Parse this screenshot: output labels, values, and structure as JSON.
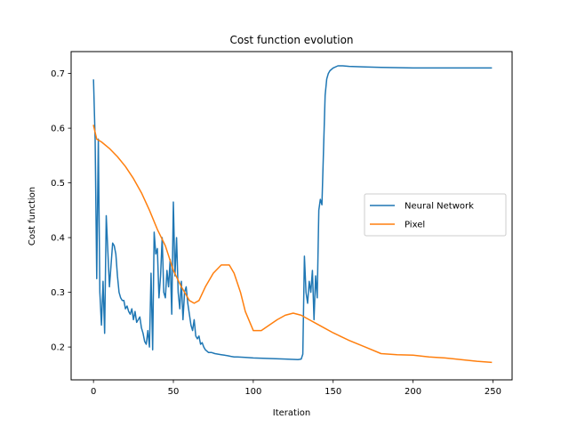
{
  "chart_data": {
    "type": "line",
    "title": "Cost function evolution",
    "xlabel": "Iteration",
    "ylabel": "Cost function",
    "xlim": [
      -14,
      262
    ],
    "ylim": [
      0.14,
      0.74
    ],
    "xticks": [
      0,
      50,
      100,
      150,
      200,
      250
    ],
    "yticks": [
      0.2,
      0.3,
      0.4,
      0.5,
      0.6,
      0.7
    ],
    "ytick_labels": [
      "0.2",
      "0.3",
      "0.4",
      "0.5",
      "0.6",
      "0.7"
    ],
    "grid": false,
    "legend_position": "center-right",
    "series": [
      {
        "name": "Neural Network",
        "color": "#1f77b4",
        "x": [
          0,
          1,
          2,
          3,
          4,
          5,
          6,
          7,
          8,
          9,
          10,
          11,
          12,
          13,
          14,
          15,
          16,
          17,
          18,
          19,
          20,
          21,
          22,
          23,
          24,
          25,
          26,
          27,
          28,
          29,
          30,
          31,
          32,
          33,
          34,
          35,
          36,
          37,
          38,
          39,
          40,
          41,
          42,
          43,
          44,
          45,
          46,
          47,
          48,
          49,
          50,
          51,
          52,
          53,
          54,
          55,
          56,
          57,
          58,
          59,
          60,
          61,
          62,
          63,
          64,
          65,
          66,
          67,
          68,
          69,
          70,
          72,
          74,
          76,
          78,
          80,
          82,
          84,
          86,
          88,
          90,
          95,
          100,
          110,
          120,
          128,
          130,
          131,
          132,
          133,
          134,
          135,
          136,
          137,
          138,
          139,
          140,
          141,
          142,
          143,
          144,
          145,
          146,
          147,
          148,
          150,
          153,
          156,
          160,
          170,
          180,
          200,
          220,
          249
        ],
        "values": [
          0.688,
          0.58,
          0.325,
          0.58,
          0.3,
          0.24,
          0.32,
          0.225,
          0.44,
          0.375,
          0.31,
          0.35,
          0.39,
          0.385,
          0.37,
          0.33,
          0.3,
          0.29,
          0.285,
          0.285,
          0.27,
          0.275,
          0.265,
          0.26,
          0.27,
          0.25,
          0.265,
          0.245,
          0.25,
          0.255,
          0.235,
          0.225,
          0.21,
          0.205,
          0.23,
          0.2,
          0.335,
          0.195,
          0.41,
          0.37,
          0.38,
          0.29,
          0.33,
          0.4,
          0.3,
          0.29,
          0.34,
          0.31,
          0.36,
          0.26,
          0.465,
          0.33,
          0.4,
          0.3,
          0.27,
          0.32,
          0.25,
          0.3,
          0.31,
          0.28,
          0.26,
          0.24,
          0.23,
          0.25,
          0.22,
          0.215,
          0.22,
          0.205,
          0.208,
          0.2,
          0.195,
          0.19,
          0.19,
          0.188,
          0.187,
          0.186,
          0.185,
          0.184,
          0.183,
          0.182,
          0.182,
          0.181,
          0.18,
          0.179,
          0.178,
          0.177,
          0.178,
          0.187,
          0.366,
          0.3,
          0.28,
          0.32,
          0.3,
          0.34,
          0.25,
          0.33,
          0.29,
          0.45,
          0.47,
          0.46,
          0.56,
          0.66,
          0.69,
          0.7,
          0.705,
          0.71,
          0.714,
          0.714,
          0.713,
          0.712,
          0.711,
          0.71,
          0.71,
          0.71
        ]
      },
      {
        "name": "Pixel",
        "color": "#ff7f0e",
        "x": [
          0,
          2,
          5,
          10,
          15,
          20,
          25,
          30,
          35,
          40,
          45,
          50,
          55,
          60,
          63,
          66,
          70,
          75,
          80,
          85,
          88,
          92,
          95,
          100,
          105,
          110,
          115,
          120,
          125,
          130,
          135,
          140,
          145,
          150,
          160,
          170,
          180,
          190,
          200,
          210,
          220,
          230,
          240,
          249
        ],
        "values": [
          0.605,
          0.58,
          0.575,
          0.563,
          0.548,
          0.53,
          0.508,
          0.482,
          0.45,
          0.415,
          0.385,
          0.34,
          0.31,
          0.285,
          0.28,
          0.285,
          0.31,
          0.335,
          0.35,
          0.35,
          0.335,
          0.3,
          0.265,
          0.23,
          0.23,
          0.24,
          0.25,
          0.258,
          0.262,
          0.258,
          0.25,
          0.242,
          0.234,
          0.226,
          0.212,
          0.2,
          0.188,
          0.186,
          0.185,
          0.182,
          0.18,
          0.177,
          0.174,
          0.172
        ]
      }
    ]
  }
}
